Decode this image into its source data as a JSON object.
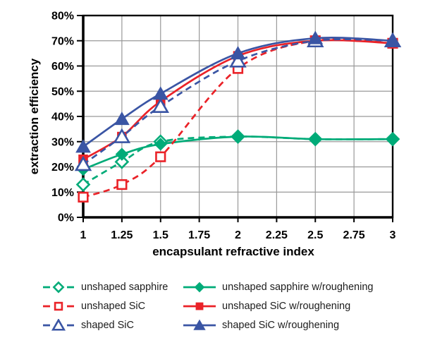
{
  "chart_data": {
    "type": "line",
    "title": "",
    "xlabel": "encapsulant refractive index",
    "ylabel": "extraction efficiency",
    "x": [
      1,
      1.25,
      1.5,
      2,
      2.5,
      3
    ],
    "series": [
      {
        "name": "unshaped sapphire",
        "color": "#00ab78",
        "line": "dashed",
        "marker": "diamond",
        "fill": "open",
        "values": [
          13,
          22,
          30,
          32,
          31,
          31
        ]
      },
      {
        "name": "unshaped sapphire w/roughening",
        "color": "#00ab78",
        "line": "solid",
        "marker": "diamond",
        "fill": "filled",
        "values": [
          19,
          25,
          29,
          32,
          31,
          31
        ]
      },
      {
        "name": "unshaped SiC",
        "color": "#ea2228",
        "line": "dashed",
        "marker": "square",
        "fill": "open",
        "values": [
          8,
          13,
          24,
          59,
          70,
          69
        ]
      },
      {
        "name": "unshaped SiC w/roughening",
        "color": "#ea2228",
        "line": "solid",
        "marker": "square",
        "fill": "filled",
        "values": [
          23,
          32,
          46,
          64,
          70,
          69
        ]
      },
      {
        "name": "shaped SiC",
        "color": "#3a55a4",
        "line": "dashed",
        "marker": "triangle",
        "fill": "open",
        "values": [
          21,
          32,
          44,
          62,
          70,
          70
        ]
      },
      {
        "name": "shaped SiC w/roughening",
        "color": "#3a55a4",
        "line": "solid",
        "marker": "triangle",
        "fill": "filled",
        "values": [
          28,
          39,
          49,
          65,
          71,
          70
        ]
      }
    ],
    "xlim": [
      1,
      3
    ],
    "ylim": [
      0,
      80
    ],
    "xticks": [
      1,
      1.25,
      1.5,
      1.75,
      2,
      2.25,
      2.5,
      2.75,
      3
    ],
    "xtick_labels": [
      "1",
      "1.25",
      "1.5",
      "1.75",
      "2",
      "2.25",
      "2.5",
      "2.75",
      "3"
    ],
    "yticks": [
      0,
      10,
      20,
      30,
      40,
      50,
      60,
      70,
      80
    ],
    "ytick_labels": [
      "0%",
      "10%",
      "20%",
      "30%",
      "40%",
      "50%",
      "60%",
      "70%",
      "80%"
    ],
    "grid": true,
    "grid_color": "#999999",
    "axis_color": "#000000",
    "legend_position": "bottom"
  }
}
